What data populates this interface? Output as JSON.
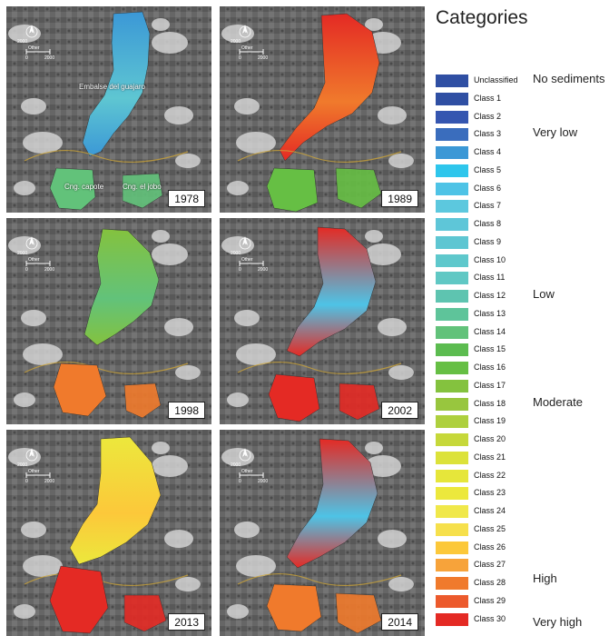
{
  "legend": {
    "title": "Categories",
    "classes": [
      {
        "label": "Unclassified",
        "color": "#2f4fa3"
      },
      {
        "label": "Class 1",
        "color": "#2f4fa3"
      },
      {
        "label": "Class 2",
        "color": "#3556b0"
      },
      {
        "label": "Class 3",
        "color": "#3a6dbd"
      },
      {
        "label": "Class 4",
        "color": "#3b98d6"
      },
      {
        "label": "Class 5",
        "color": "#2ec6ec"
      },
      {
        "label": "Class 6",
        "color": "#4ec3e6"
      },
      {
        "label": "Class 7",
        "color": "#5cc8de"
      },
      {
        "label": "Class 8",
        "color": "#5ec6d8"
      },
      {
        "label": "Class 9",
        "color": "#5ec6d2"
      },
      {
        "label": "Class 10",
        "color": "#5ec8cc"
      },
      {
        "label": "Class 11",
        "color": "#60c8c4"
      },
      {
        "label": "Class 12",
        "color": "#5ec4b0"
      },
      {
        "label": "Class 13",
        "color": "#5ec49a"
      },
      {
        "label": "Class 14",
        "color": "#62c27a"
      },
      {
        "label": "Class 15",
        "color": "#5cbc50"
      },
      {
        "label": "Class 16",
        "color": "#66bf44"
      },
      {
        "label": "Class 17",
        "color": "#84c23e"
      },
      {
        "label": "Class 18",
        "color": "#98c63e"
      },
      {
        "label": "Class 19",
        "color": "#aed03e"
      },
      {
        "label": "Class 20",
        "color": "#c6d83a"
      },
      {
        "label": "Class 21",
        "color": "#dce23a"
      },
      {
        "label": "Class 22",
        "color": "#e6e63a"
      },
      {
        "label": "Class 23",
        "color": "#ece83c"
      },
      {
        "label": "Class 24",
        "color": "#f0e84a"
      },
      {
        "label": "Class 25",
        "color": "#f6e04c"
      },
      {
        "label": "Class 26",
        "color": "#fcc83a"
      },
      {
        "label": "Class 27",
        "color": "#f7a33a"
      },
      {
        "label": "Class 28",
        "color": "#f07a2c"
      },
      {
        "label": "Class 29",
        "color": "#ec5a2c"
      },
      {
        "label": "Class 30",
        "color": "#e42a24"
      }
    ],
    "categories": [
      {
        "label": "No sediments",
        "row": 0
      },
      {
        "label": "Very low",
        "row": 3
      },
      {
        "label": "Low",
        "row": 12
      },
      {
        "label": "Moderate",
        "row": 18
      },
      {
        "label": "High",
        "row": 28
      },
      {
        "label": "Very high",
        "row": 30
      }
    ]
  },
  "panels": [
    {
      "year": "1978",
      "scheme": [
        "#3b98d6",
        "#5ec6d2",
        "#62c27a"
      ],
      "captions": [
        "Embalse del guajaro",
        "Cng. capote",
        "Cng. el jobo"
      ]
    },
    {
      "year": "1989",
      "scheme": [
        "#e42a24",
        "#f07a2c",
        "#66bf44"
      ],
      "captions": []
    },
    {
      "year": "1998",
      "scheme": [
        "#84c23e",
        "#62c27a",
        "#f07a2c"
      ],
      "captions": []
    },
    {
      "year": "2002",
      "scheme": [
        "#e42a24",
        "#4ec3e6",
        "#e42a24"
      ],
      "captions": []
    },
    {
      "year": "2013",
      "scheme": [
        "#ece83c",
        "#fcc83a",
        "#e42a24"
      ],
      "captions": []
    },
    {
      "year": "2014",
      "scheme": [
        "#e42a24",
        "#4ec3e6",
        "#f07a2c"
      ],
      "captions": []
    }
  ],
  "scale": {
    "zero": "0",
    "top": "2000",
    "mid": "2000",
    "unit": "Other"
  },
  "north_label": "N"
}
